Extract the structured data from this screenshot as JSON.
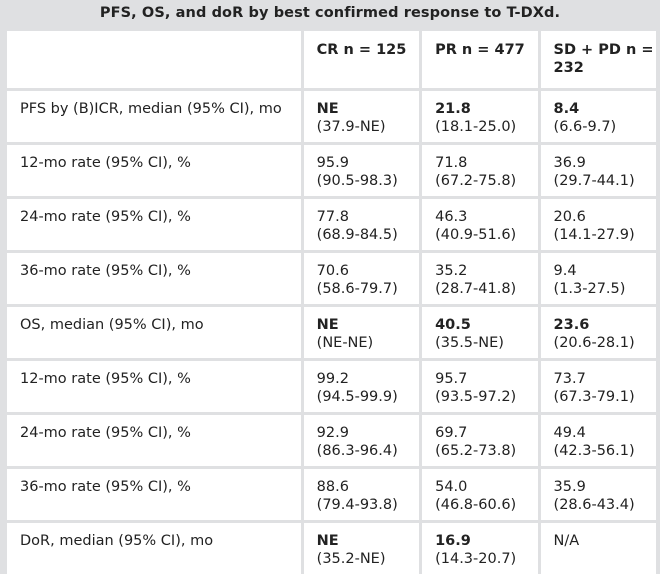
{
  "title": "PFS, OS, and doR by best confirmed response to T-DXd.",
  "columns": [
    "",
    "CR n = 125",
    "PR n = 477",
    "SD + PD n = 232"
  ],
  "rows": [
    {
      "label": "PFS by (B)ICR, median (95% CI), mo",
      "cells": [
        {
          "value": "NE",
          "ci": "(37.9-NE)",
          "bold": true
        },
        {
          "value": "21.8",
          "ci": "(18.1-25.0)",
          "bold": true
        },
        {
          "value": "8.4",
          "ci": "(6.6-9.7)",
          "bold": true
        }
      ]
    },
    {
      "label": "12-mo rate (95% CI), %",
      "cells": [
        {
          "value": "95.9",
          "ci": "(90.5-98.3)",
          "bold": false
        },
        {
          "value": "71.8",
          "ci": "(67.2-75.8)",
          "bold": false
        },
        {
          "value": "36.9",
          "ci": "(29.7-44.1)",
          "bold": false
        }
      ]
    },
    {
      "label": "24-mo rate (95% CI), %",
      "cells": [
        {
          "value": "77.8",
          "ci": "(68.9-84.5)",
          "bold": false
        },
        {
          "value": "46.3",
          "ci": "(40.9-51.6)",
          "bold": false
        },
        {
          "value": "20.6",
          "ci": "(14.1-27.9)",
          "bold": false
        }
      ]
    },
    {
      "label": "36-mo rate (95% CI), %",
      "cells": [
        {
          "value": "70.6",
          "ci": "(58.6-79.7)",
          "bold": false
        },
        {
          "value": "35.2",
          "ci": "(28.7-41.8)",
          "bold": false
        },
        {
          "value": "9.4",
          "ci": "(1.3-27.5)",
          "bold": false
        }
      ]
    },
    {
      "label": "OS, median (95% CI), mo",
      "cells": [
        {
          "value": "NE",
          "ci": "(NE-NE)",
          "bold": true
        },
        {
          "value": "40.5",
          "ci": "(35.5-NE)",
          "bold": true
        },
        {
          "value": "23.6",
          "ci": "(20.6-28.1)",
          "bold": true
        }
      ]
    },
    {
      "label": "12-mo rate (95% CI), %",
      "cells": [
        {
          "value": "99.2",
          "ci": "(94.5-99.9)",
          "bold": false
        },
        {
          "value": "95.7",
          "ci": "(93.5-97.2)",
          "bold": false
        },
        {
          "value": "73.7",
          "ci": "(67.3-79.1)",
          "bold": false
        }
      ]
    },
    {
      "label": "24-mo rate (95% CI), %",
      "cells": [
        {
          "value": "92.9",
          "ci": "(86.3-96.4)",
          "bold": false
        },
        {
          "value": "69.7",
          "ci": "(65.2-73.8)",
          "bold": false
        },
        {
          "value": "49.4",
          "ci": "(42.3-56.1)",
          "bold": false
        }
      ]
    },
    {
      "label": "36-mo rate (95% CI), %",
      "cells": [
        {
          "value": "88.6",
          "ci": "(79.4-93.8)",
          "bold": false
        },
        {
          "value": "54.0",
          "ci": "(46.8-60.6)",
          "bold": false
        },
        {
          "value": "35.9",
          "ci": "(28.6-43.4)",
          "bold": false
        }
      ]
    },
    {
      "label": "DoR, median (95% CI), mo",
      "cells": [
        {
          "value": "NE",
          "ci": "(35.2-NE)",
          "bold": true
        },
        {
          "value": "16.9",
          "ci": "(14.3-20.7)",
          "bold": true
        },
        {
          "value": "N/A",
          "ci": "",
          "bold": false
        }
      ]
    }
  ]
}
